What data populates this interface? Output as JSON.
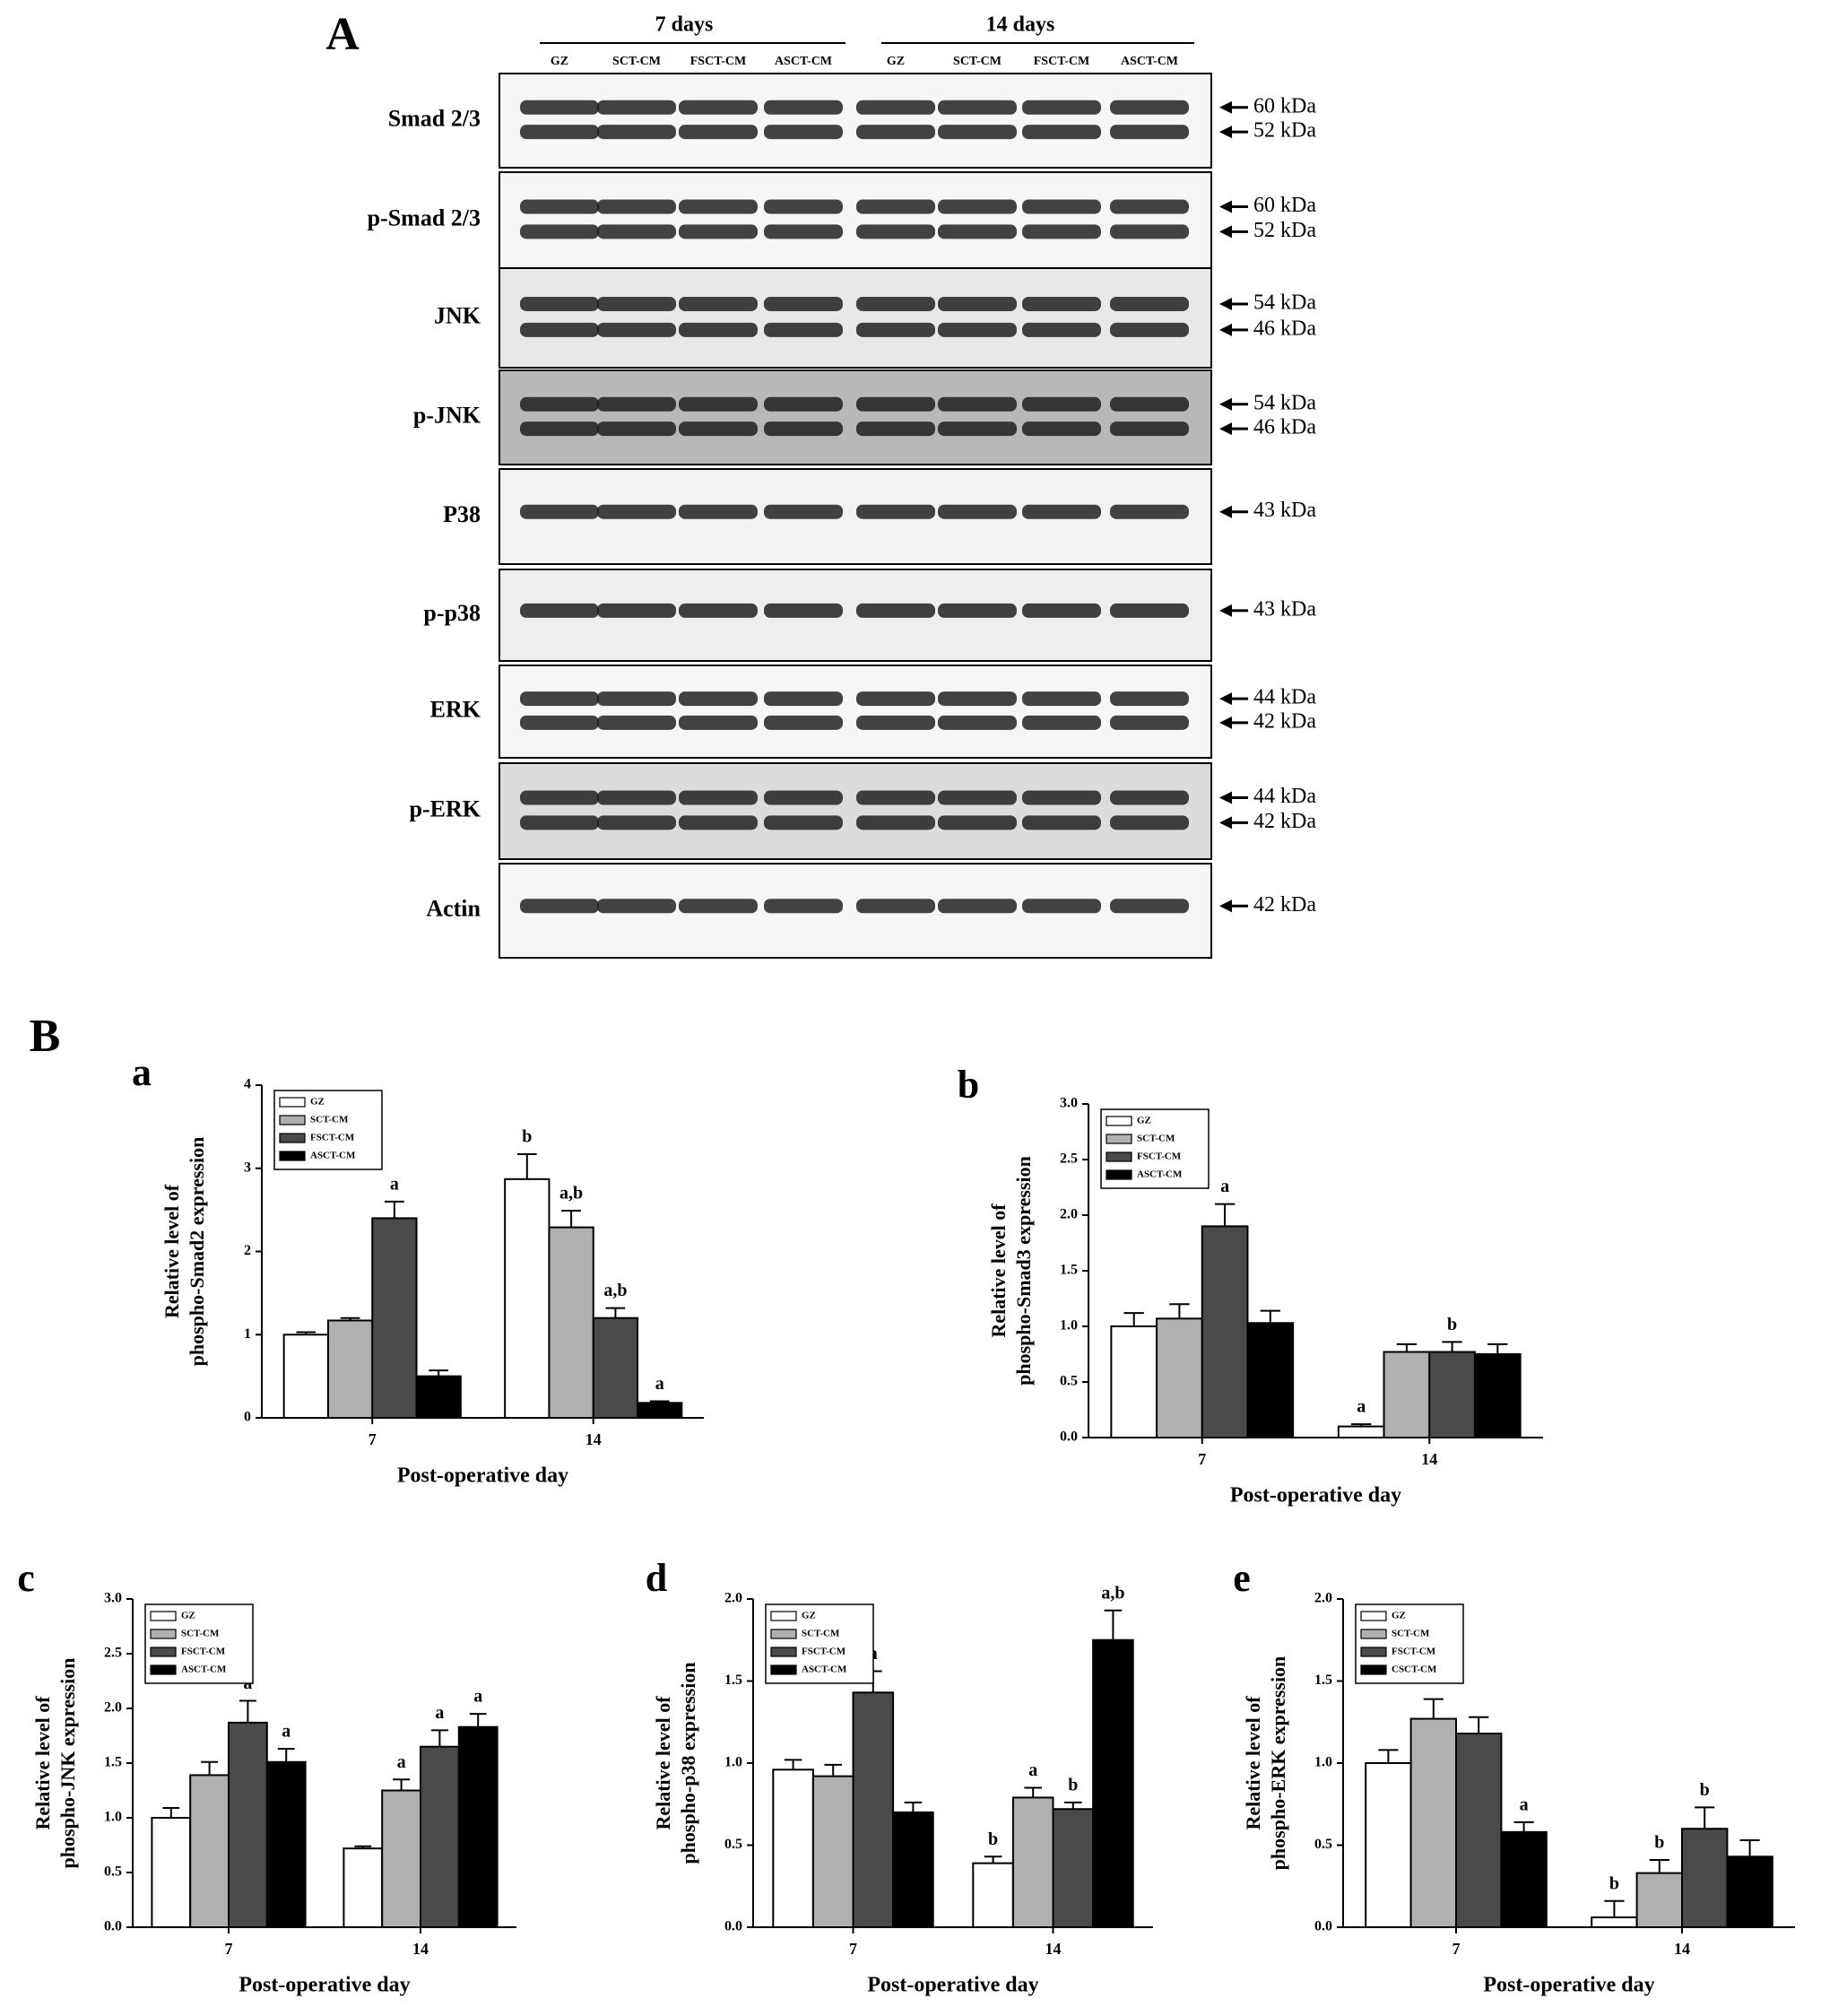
{
  "panel_a": {
    "label": "A",
    "groups": [
      "7 days",
      "14 days"
    ],
    "lanes": [
      "GZ",
      "SCT-CM",
      "FSCT-CM",
      "ASCT-CM",
      "GZ",
      "SCT-CM",
      "FSCT-CM",
      "ASCT-CM"
    ],
    "rows": [
      {
        "label": "Smad 2/3",
        "markers": [
          "60 kDa",
          "52 kDa"
        ]
      },
      {
        "label": "p-Smad 2/3",
        "markers": [
          "60 kDa",
          "52 kDa"
        ]
      },
      {
        "label": "JNK",
        "markers": [
          "54 kDa",
          "46 kDa"
        ]
      },
      {
        "label": "p-JNK",
        "markers": [
          "54 kDa",
          "46 kDa"
        ]
      },
      {
        "label": "P38",
        "markers": [
          "43 kDa"
        ]
      },
      {
        "label": "p-p38",
        "markers": [
          "43 kDa"
        ]
      },
      {
        "label": "ERK",
        "markers": [
          "44 kDa",
          "42 kDa"
        ]
      },
      {
        "label": "p-ERK",
        "markers": [
          "44 kDa",
          "42 kDa"
        ]
      },
      {
        "label": "Actin",
        "markers": [
          "42 kDa"
        ]
      }
    ]
  },
  "panel_b_label": "B",
  "chart_data": [
    {
      "type": "bar",
      "panel": "a",
      "ylabel": [
        "Relative level of",
        "phospho-Smad2 expression"
      ],
      "xlabel": "Post-operative day",
      "categories": [
        "7",
        "14"
      ],
      "ylim": [
        0,
        4
      ],
      "yticks": [
        0,
        1,
        2,
        3,
        4
      ],
      "series": [
        {
          "name": "GZ",
          "color": "#ffffff",
          "values": [
            1.0,
            2.87
          ],
          "errors": [
            0.03,
            0.3
          ],
          "letters": [
            null,
            "b"
          ]
        },
        {
          "name": "SCT-CM",
          "color": "#b0b0b0",
          "values": [
            1.17,
            2.29
          ],
          "errors": [
            0.03,
            0.2
          ],
          "letters": [
            null,
            "a,b"
          ]
        },
        {
          "name": "FSCT-CM",
          "color": "#4a4a4a",
          "values": [
            2.4,
            1.2
          ],
          "errors": [
            0.2,
            0.12
          ],
          "letters": [
            "a",
            "a,b"
          ]
        },
        {
          "name": "ASCT-CM",
          "color": "#000000",
          "values": [
            0.5,
            0.18
          ],
          "errors": [
            0.07,
            0.02
          ],
          "letters": [
            null,
            "a"
          ]
        }
      ]
    },
    {
      "type": "bar",
      "panel": "b",
      "ylabel": [
        "Relative level of",
        "phospho-Smad3 expression"
      ],
      "xlabel": "Post-operative day",
      "categories": [
        "7",
        "14"
      ],
      "ylim": [
        0,
        3
      ],
      "yticks": [
        {
          "value": 0,
          "label": "0.0"
        },
        {
          "value": 0.5,
          "label": "0.5"
        },
        {
          "value": 1,
          "label": "1.0"
        },
        {
          "value": 1.5,
          "label": "1.5"
        },
        {
          "value": 2,
          "label": "2.0"
        },
        {
          "value": 2.5,
          "label": "2.5"
        },
        {
          "value": 3,
          "label": "3.0"
        }
      ],
      "series": [
        {
          "name": "GZ",
          "color": "#ffffff",
          "values": [
            1.0,
            0.1
          ],
          "errors": [
            0.12,
            0.02
          ],
          "letters": [
            null,
            "a"
          ]
        },
        {
          "name": "SCT-CM",
          "color": "#b0b0b0",
          "values": [
            1.07,
            0.77
          ],
          "errors": [
            0.13,
            0.07
          ],
          "letters": [
            null,
            null
          ]
        },
        {
          "name": "FSCT-CM",
          "color": "#4a4a4a",
          "values": [
            1.9,
            0.77
          ],
          "errors": [
            0.2,
            0.09
          ],
          "letters": [
            "a",
            "b"
          ]
        },
        {
          "name": "ASCT-CM",
          "color": "#000000",
          "values": [
            1.03,
            0.75
          ],
          "errors": [
            0.11,
            0.09
          ],
          "letters": [
            null,
            null
          ]
        }
      ]
    },
    {
      "type": "bar",
      "panel": "c",
      "ylabel": [
        "Relative level of",
        "phospho-JNK expression"
      ],
      "xlabel": "Post-operative day",
      "categories": [
        "7",
        "14"
      ],
      "ylim": [
        0,
        3
      ],
      "yticks": [
        {
          "value": 0,
          "label": "0.0"
        },
        {
          "value": 0.5,
          "label": "0.5"
        },
        {
          "value": 1,
          "label": "1.0"
        },
        {
          "value": 1.5,
          "label": "1.5"
        },
        {
          "value": 2,
          "label": "2.0"
        },
        {
          "value": 2.5,
          "label": "2.5"
        },
        {
          "value": 3,
          "label": "3.0"
        }
      ],
      "series": [
        {
          "name": "GZ",
          "color": "#ffffff",
          "values": [
            1.0,
            0.72
          ],
          "errors": [
            0.09,
            0.02
          ],
          "letters": [
            null,
            null
          ]
        },
        {
          "name": "SCT-CM",
          "color": "#b0b0b0",
          "values": [
            1.39,
            1.25
          ],
          "errors": [
            0.12,
            0.1
          ],
          "letters": [
            null,
            "a"
          ]
        },
        {
          "name": "FSCT-CM",
          "color": "#4a4a4a",
          "values": [
            1.87,
            1.65
          ],
          "errors": [
            0.2,
            0.15
          ],
          "letters": [
            "a",
            "a"
          ]
        },
        {
          "name": "ASCT-CM",
          "color": "#000000",
          "values": [
            1.51,
            1.83
          ],
          "errors": [
            0.12,
            0.12
          ],
          "letters": [
            "a",
            "a"
          ]
        }
      ]
    },
    {
      "type": "bar",
      "panel": "d",
      "ylabel": [
        "Relative level of",
        "phospho-p38 expression"
      ],
      "xlabel": "Post-operative day",
      "categories": [
        "7",
        "14"
      ],
      "ylim": [
        0,
        2
      ],
      "yticks": [
        {
          "value": 0,
          "label": "0.0"
        },
        {
          "value": 0.5,
          "label": "0.5"
        },
        {
          "value": 1,
          "label": "1.0"
        },
        {
          "value": 1.5,
          "label": "1.5"
        },
        {
          "value": 2,
          "label": "2.0"
        }
      ],
      "series": [
        {
          "name": "GZ",
          "color": "#ffffff",
          "values": [
            0.96,
            0.39
          ],
          "errors": [
            0.06,
            0.04
          ],
          "letters": [
            null,
            "b"
          ]
        },
        {
          "name": "SCT-CM",
          "color": "#b0b0b0",
          "values": [
            0.92,
            0.79
          ],
          "errors": [
            0.07,
            0.06
          ],
          "letters": [
            null,
            "a"
          ]
        },
        {
          "name": "FSCT-CM",
          "color": "#4a4a4a",
          "values": [
            1.43,
            0.72
          ],
          "errors": [
            0.13,
            0.04
          ],
          "letters": [
            "a",
            "b"
          ]
        },
        {
          "name": "ASCT-CM",
          "color": "#000000",
          "values": [
            0.7,
            1.75
          ],
          "errors": [
            0.06,
            0.18
          ],
          "letters": [
            null,
            "a,b"
          ]
        }
      ]
    },
    {
      "type": "bar",
      "panel": "e",
      "ylabel": [
        "Relative level of",
        "phospho-ERK expression"
      ],
      "xlabel": "Post-operative day",
      "categories": [
        "7",
        "14"
      ],
      "ylim": [
        0,
        2
      ],
      "yticks": [
        {
          "value": 0,
          "label": "0.0"
        },
        {
          "value": 0.5,
          "label": "0.5"
        },
        {
          "value": 1,
          "label": "1.0"
        },
        {
          "value": 1.5,
          "label": "1.5"
        },
        {
          "value": 2,
          "label": "2.0"
        }
      ],
      "series": [
        {
          "name": "GZ",
          "color": "#ffffff",
          "values": [
            1.0,
            0.06
          ],
          "errors": [
            0.08,
            0.1
          ],
          "letters": [
            null,
            "b"
          ]
        },
        {
          "name": "SCT-CM",
          "color": "#b0b0b0",
          "values": [
            1.27,
            0.33
          ],
          "errors": [
            0.12,
            0.08
          ],
          "letters": [
            null,
            "b"
          ]
        },
        {
          "name": "FSCT-CM",
          "color": "#4a4a4a",
          "values": [
            1.18,
            0.6
          ],
          "errors": [
            0.1,
            0.13
          ],
          "letters": [
            null,
            "b"
          ]
        },
        {
          "name": "CSCT-CM",
          "color": "#000000",
          "values": [
            0.58,
            0.43
          ],
          "errors": [
            0.06,
            0.1
          ],
          "letters": [
            "a",
            null
          ]
        }
      ]
    }
  ]
}
